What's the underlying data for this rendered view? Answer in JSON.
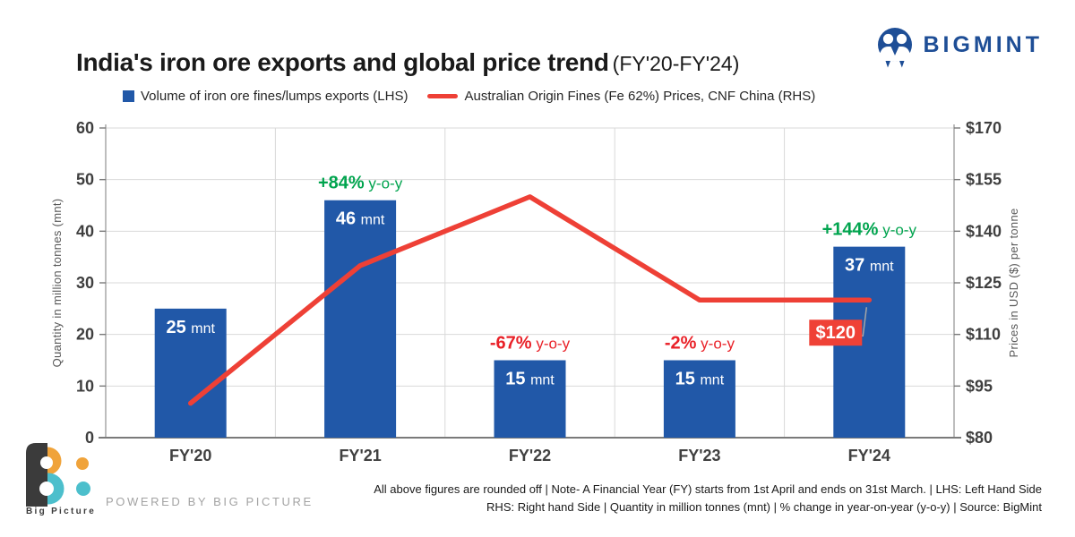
{
  "header": {
    "title": "India's iron ore exports and global price trend",
    "subtitle": "(FY'20-FY'24)",
    "brand": "BIGMINT"
  },
  "legend": {
    "items": [
      {
        "label": "Volume of iron ore fines/lumps exports (LHS)"
      },
      {
        "label": "Australian Origin Fines (Fe 62%) Prices, CNF China (RHS)"
      }
    ]
  },
  "chart_data": {
    "type": "combo bar+line",
    "categories": [
      "FY'20",
      "FY'21",
      "FY'22",
      "FY'23",
      "FY'24"
    ],
    "series": [
      {
        "name": "Volume of iron ore fines/lumps exports (LHS)",
        "type": "bar",
        "axis": "left",
        "unit": "mnt",
        "color": "#2158A8",
        "values": [
          25,
          46,
          15,
          15,
          37
        ]
      },
      {
        "name": "Australian Origin Fines (Fe 62%) Prices, CNF China (RHS)",
        "type": "line",
        "axis": "right",
        "unit": "USD per tonne",
        "color": "#EE4036",
        "values": [
          90,
          130,
          150,
          120,
          120
        ]
      }
    ],
    "left_axis": {
      "title": "Quantity in million tonnes (mnt)",
      "min": 0,
      "max": 60,
      "step": 10,
      "ticks": [
        "0",
        "10",
        "20",
        "30",
        "40",
        "50",
        "60"
      ]
    },
    "right_axis": {
      "title": "Prices in USD ($) per tonne",
      "min": 80,
      "max": 170,
      "step": 15,
      "ticks": [
        "$80",
        "$95",
        "$110",
        "$125",
        "$140",
        "$155",
        "$170"
      ]
    },
    "grid": true,
    "legend_position": "top",
    "annotations": [
      {
        "index": 1,
        "change": "+84%",
        "suffix": " y-o-y",
        "color": "#00A44E"
      },
      {
        "index": 2,
        "change": "-67%",
        "suffix": " y-o-y",
        "color": "#E92128"
      },
      {
        "index": 3,
        "change": "-2%",
        "suffix": " y-o-y",
        "color": "#E92128"
      },
      {
        "index": 4,
        "change": "+144%",
        "suffix": " y-o-y",
        "color": "#00A44E"
      }
    ],
    "point_label": {
      "series": 1,
      "index": 4,
      "text": "$120",
      "bg": "#EF4136",
      "fg": "#ffffff"
    }
  },
  "footer": {
    "line1": "All above figures are rounded off | Note- A Financial Year (FY) starts from 1st April and ends on 31st March. | LHS: Left Hand Side",
    "line2": "RHS: Right hand Side | Quantity in million tonnes (mnt) | % change in year-on-year (y-o-y) | Source: BigMint",
    "powered_by": "POWERED BY BIG PICTURE",
    "logo_text": "Big Picture"
  }
}
